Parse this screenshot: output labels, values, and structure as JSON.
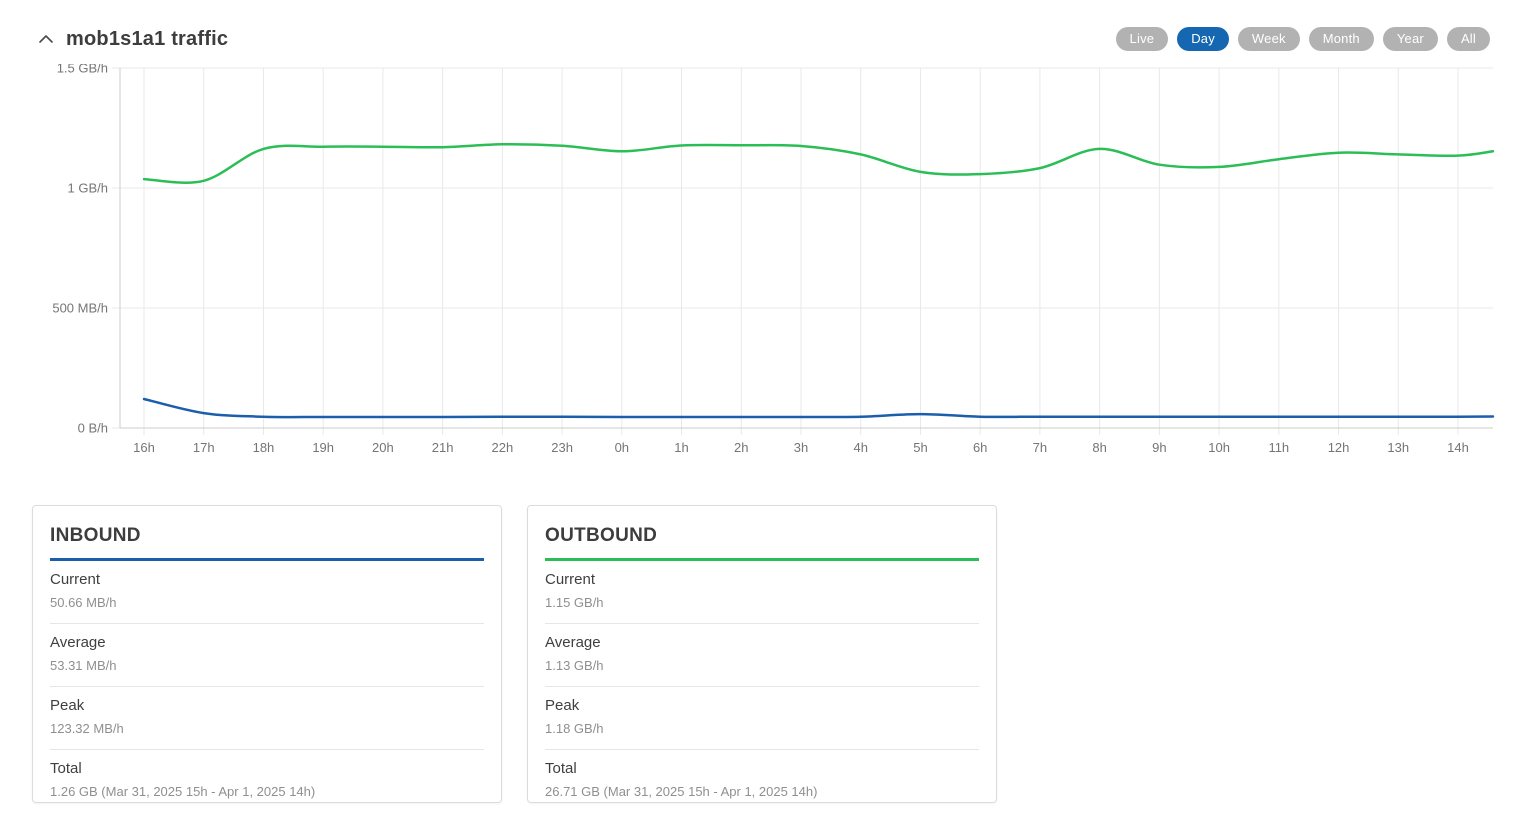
{
  "header": {
    "title": "mob1s1a1 traffic",
    "collapse_icon": "chevron-up",
    "ranges": [
      {
        "label": "Live",
        "active": false
      },
      {
        "label": "Day",
        "active": true
      },
      {
        "label": "Week",
        "active": false
      },
      {
        "label": "Month",
        "active": false
      },
      {
        "label": "Year",
        "active": false
      },
      {
        "label": "All",
        "active": false
      }
    ],
    "active_range_color": "#1467b0",
    "inactive_range_color": "#b2b2b2"
  },
  "chart_data": {
    "type": "line",
    "title": "mob1s1a1 traffic",
    "xlabel": "",
    "ylabel": "",
    "unit": "MB/h",
    "ylim": [
      0,
      1500
    ],
    "grid": true,
    "legend": "none",
    "y_ticks": [
      {
        "label": "1.5 GB/h",
        "value": 1500
      },
      {
        "label": "1 GB/h",
        "value": 1000
      },
      {
        "label": "500 MB/h",
        "value": 500
      },
      {
        "label": "0 B/h",
        "value": 0
      }
    ],
    "x_labels": [
      "16h",
      "17h",
      "18h",
      "19h",
      "20h",
      "21h",
      "22h",
      "23h",
      "0h",
      "1h",
      "2h",
      "3h",
      "4h",
      "5h",
      "6h",
      "7h",
      "8h",
      "9h",
      "10h",
      "11h",
      "12h",
      "13h",
      "14h"
    ],
    "note": "each series has 24 values: one per hour tick plus a final value at the chart right edge (~14h35)",
    "series": [
      {
        "name": "outbound",
        "color": "#2cbe56",
        "values": [
          1037,
          1030,
          1163,
          1172,
          1172,
          1170,
          1182,
          1176,
          1153,
          1177,
          1178,
          1175,
          1140,
          1067,
          1058,
          1083,
          1163,
          1097,
          1088,
          1120,
          1147,
          1140,
          1135,
          1153
        ]
      },
      {
        "name": "inbound",
        "color": "#1b5eac",
        "values": [
          121,
          62,
          47,
          46,
          46,
          46,
          47,
          47,
          46,
          46,
          46,
          46,
          47,
          58,
          47,
          47,
          47,
          47,
          47,
          47,
          47,
          47,
          47,
          48
        ]
      }
    ],
    "axis_color": "#cccccc",
    "grid_color": "#e8e8e8",
    "tick_label_color": "#757575"
  },
  "cards": [
    {
      "title": "INBOUND",
      "accent_color": "#1b5eac",
      "rows": [
        {
          "label": "Current",
          "value": "50.66 MB/h"
        },
        {
          "label": "Average",
          "value": "53.31 MB/h"
        },
        {
          "label": "Peak",
          "value": "123.32 MB/h"
        },
        {
          "label": "Total",
          "value": "1.26 GB (Mar 31, 2025 15h - Apr 1, 2025 14h)"
        }
      ]
    },
    {
      "title": "OUTBOUND",
      "accent_color": "#2cbe56",
      "rows": [
        {
          "label": "Current",
          "value": "1.15 GB/h"
        },
        {
          "label": "Average",
          "value": "1.13 GB/h"
        },
        {
          "label": "Peak",
          "value": "1.18 GB/h"
        },
        {
          "label": "Total",
          "value": "26.71 GB (Mar 31, 2025 15h - Apr 1, 2025 14h)"
        }
      ]
    }
  ]
}
